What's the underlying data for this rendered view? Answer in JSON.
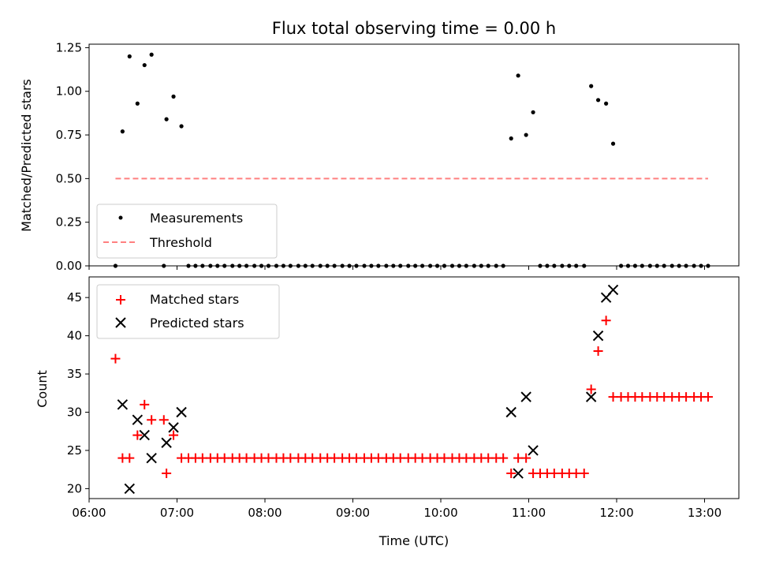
{
  "chart_data": [
    {
      "type": "scatter",
      "title": "Flux total observing time = 0.00 h",
      "xlabel": "",
      "ylabel": "Matched/Predicted stars",
      "xlim": [
        6.0,
        13.39
      ],
      "ylim": [
        0.0,
        1.27
      ],
      "yticks": [
        0.0,
        0.25,
        0.5,
        0.75,
        1.0,
        1.25
      ],
      "ytick_labels": [
        "0.00",
        "0.25",
        "0.50",
        "0.75",
        "1.00",
        "1.25"
      ],
      "legend_position": "lower-left",
      "series": [
        {
          "name": "Measurements",
          "marker": "dot",
          "color": "#000000",
          "points": [
            [
              6.3,
              0.0
            ],
            [
              6.38,
              0.77
            ],
            [
              6.46,
              1.2
            ],
            [
              6.55,
              0.93
            ],
            [
              6.63,
              1.15
            ],
            [
              6.71,
              1.21
            ],
            [
              6.85,
              0.0
            ],
            [
              6.88,
              0.84
            ],
            [
              6.96,
              0.97
            ],
            [
              7.05,
              0.8
            ],
            [
              7.13,
              0.0
            ],
            [
              7.21,
              0.0
            ],
            [
              7.29,
              0.0
            ],
            [
              7.38,
              0.0
            ],
            [
              7.46,
              0.0
            ],
            [
              7.54,
              0.0
            ],
            [
              7.63,
              0.0
            ],
            [
              7.71,
              0.0
            ],
            [
              7.79,
              0.0
            ],
            [
              7.88,
              0.0
            ],
            [
              7.96,
              0.0
            ],
            [
              8.04,
              0.0
            ],
            [
              8.13,
              0.0
            ],
            [
              8.21,
              0.0
            ],
            [
              8.29,
              0.0
            ],
            [
              8.38,
              0.0
            ],
            [
              8.46,
              0.0
            ],
            [
              8.54,
              0.0
            ],
            [
              8.63,
              0.0
            ],
            [
              8.71,
              0.0
            ],
            [
              8.79,
              0.0
            ],
            [
              8.88,
              0.0
            ],
            [
              8.96,
              0.0
            ],
            [
              9.04,
              0.0
            ],
            [
              9.13,
              0.0
            ],
            [
              9.21,
              0.0
            ],
            [
              9.29,
              0.0
            ],
            [
              9.38,
              0.0
            ],
            [
              9.46,
              0.0
            ],
            [
              9.54,
              0.0
            ],
            [
              9.63,
              0.0
            ],
            [
              9.71,
              0.0
            ],
            [
              9.79,
              0.0
            ],
            [
              9.88,
              0.0
            ],
            [
              9.96,
              0.0
            ],
            [
              10.04,
              0.0
            ],
            [
              10.13,
              0.0
            ],
            [
              10.21,
              0.0
            ],
            [
              10.29,
              0.0
            ],
            [
              10.38,
              0.0
            ],
            [
              10.46,
              0.0
            ],
            [
              10.54,
              0.0
            ],
            [
              10.63,
              0.0
            ],
            [
              10.71,
              0.0
            ],
            [
              10.8,
              0.73
            ],
            [
              10.88,
              1.09
            ],
            [
              10.97,
              0.75
            ],
            [
              11.05,
              0.88
            ],
            [
              11.13,
              0.0
            ],
            [
              11.21,
              0.0
            ],
            [
              11.29,
              0.0
            ],
            [
              11.38,
              0.0
            ],
            [
              11.46,
              0.0
            ],
            [
              11.54,
              0.0
            ],
            [
              11.63,
              0.0
            ],
            [
              11.71,
              1.03
            ],
            [
              11.79,
              0.95
            ],
            [
              11.88,
              0.93
            ],
            [
              11.96,
              0.7
            ],
            [
              12.05,
              0.0
            ],
            [
              12.13,
              0.0
            ],
            [
              12.21,
              0.0
            ],
            [
              12.29,
              0.0
            ],
            [
              12.38,
              0.0
            ],
            [
              12.46,
              0.0
            ],
            [
              12.54,
              0.0
            ],
            [
              12.63,
              0.0
            ],
            [
              12.71,
              0.0
            ],
            [
              12.79,
              0.0
            ],
            [
              12.88,
              0.0
            ],
            [
              12.96,
              0.0
            ],
            [
              13.04,
              0.0
            ]
          ]
        },
        {
          "name": "Threshold",
          "type": "line",
          "style": "dashed",
          "color": "#ff8080",
          "points": [
            [
              6.3,
              0.5
            ],
            [
              13.04,
              0.5
            ]
          ]
        }
      ]
    },
    {
      "type": "scatter",
      "title": "",
      "xlabel": "Time (UTC)",
      "ylabel": "Count",
      "xlim": [
        6.0,
        13.39
      ],
      "ylim": [
        18.7,
        47.7
      ],
      "xticks": [
        6,
        7,
        8,
        9,
        10,
        11,
        12,
        13
      ],
      "xtick_labels": [
        "06:00",
        "07:00",
        "08:00",
        "09:00",
        "10:00",
        "11:00",
        "12:00",
        "13:00"
      ],
      "yticks": [
        20,
        25,
        30,
        35,
        40,
        45
      ],
      "ytick_labels": [
        "20",
        "25",
        "30",
        "35",
        "40",
        "45"
      ],
      "legend_position": "upper-left",
      "series": [
        {
          "name": "Matched stars",
          "marker": "plus",
          "color": "#ff0000",
          "points": [
            [
              6.3,
              37
            ],
            [
              6.38,
              24
            ],
            [
              6.46,
              24
            ],
            [
              6.55,
              27
            ],
            [
              6.63,
              31
            ],
            [
              6.71,
              29
            ],
            [
              6.85,
              29
            ],
            [
              6.88,
              22
            ],
            [
              6.96,
              27
            ],
            [
              7.05,
              24
            ],
            [
              7.13,
              24
            ],
            [
              7.21,
              24
            ],
            [
              7.29,
              24
            ],
            [
              7.38,
              24
            ],
            [
              7.46,
              24
            ],
            [
              7.54,
              24
            ],
            [
              7.63,
              24
            ],
            [
              7.71,
              24
            ],
            [
              7.79,
              24
            ],
            [
              7.88,
              24
            ],
            [
              7.96,
              24
            ],
            [
              8.04,
              24
            ],
            [
              8.13,
              24
            ],
            [
              8.21,
              24
            ],
            [
              8.29,
              24
            ],
            [
              8.38,
              24
            ],
            [
              8.46,
              24
            ],
            [
              8.54,
              24
            ],
            [
              8.63,
              24
            ],
            [
              8.71,
              24
            ],
            [
              8.79,
              24
            ],
            [
              8.88,
              24
            ],
            [
              8.96,
              24
            ],
            [
              9.04,
              24
            ],
            [
              9.13,
              24
            ],
            [
              9.21,
              24
            ],
            [
              9.29,
              24
            ],
            [
              9.38,
              24
            ],
            [
              9.46,
              24
            ],
            [
              9.54,
              24
            ],
            [
              9.63,
              24
            ],
            [
              9.71,
              24
            ],
            [
              9.79,
              24
            ],
            [
              9.88,
              24
            ],
            [
              9.96,
              24
            ],
            [
              10.04,
              24
            ],
            [
              10.13,
              24
            ],
            [
              10.21,
              24
            ],
            [
              10.29,
              24
            ],
            [
              10.38,
              24
            ],
            [
              10.46,
              24
            ],
            [
              10.54,
              24
            ],
            [
              10.63,
              24
            ],
            [
              10.71,
              24
            ],
            [
              10.8,
              22
            ],
            [
              10.88,
              24
            ],
            [
              10.97,
              24
            ],
            [
              11.05,
              22
            ],
            [
              11.13,
              22
            ],
            [
              11.21,
              22
            ],
            [
              11.29,
              22
            ],
            [
              11.38,
              22
            ],
            [
              11.46,
              22
            ],
            [
              11.54,
              22
            ],
            [
              11.63,
              22
            ],
            [
              11.71,
              33
            ],
            [
              11.79,
              38
            ],
            [
              11.88,
              42
            ],
            [
              11.96,
              32
            ],
            [
              12.05,
              32
            ],
            [
              12.13,
              32
            ],
            [
              12.21,
              32
            ],
            [
              12.29,
              32
            ],
            [
              12.38,
              32
            ],
            [
              12.46,
              32
            ],
            [
              12.54,
              32
            ],
            [
              12.63,
              32
            ],
            [
              12.71,
              32
            ],
            [
              12.79,
              32
            ],
            [
              12.88,
              32
            ],
            [
              12.96,
              32
            ],
            [
              13.04,
              32
            ]
          ]
        },
        {
          "name": "Predicted stars",
          "marker": "x",
          "color": "#000000",
          "points": [
            [
              6.38,
              31
            ],
            [
              6.46,
              20
            ],
            [
              6.55,
              29
            ],
            [
              6.63,
              27
            ],
            [
              6.71,
              24
            ],
            [
              6.88,
              26
            ],
            [
              6.96,
              28
            ],
            [
              7.05,
              30
            ],
            [
              10.8,
              30
            ],
            [
              10.88,
              22
            ],
            [
              10.97,
              32
            ],
            [
              11.05,
              25
            ],
            [
              11.71,
              32
            ],
            [
              11.79,
              40
            ],
            [
              11.88,
              45
            ],
            [
              11.96,
              46
            ]
          ]
        }
      ]
    }
  ]
}
